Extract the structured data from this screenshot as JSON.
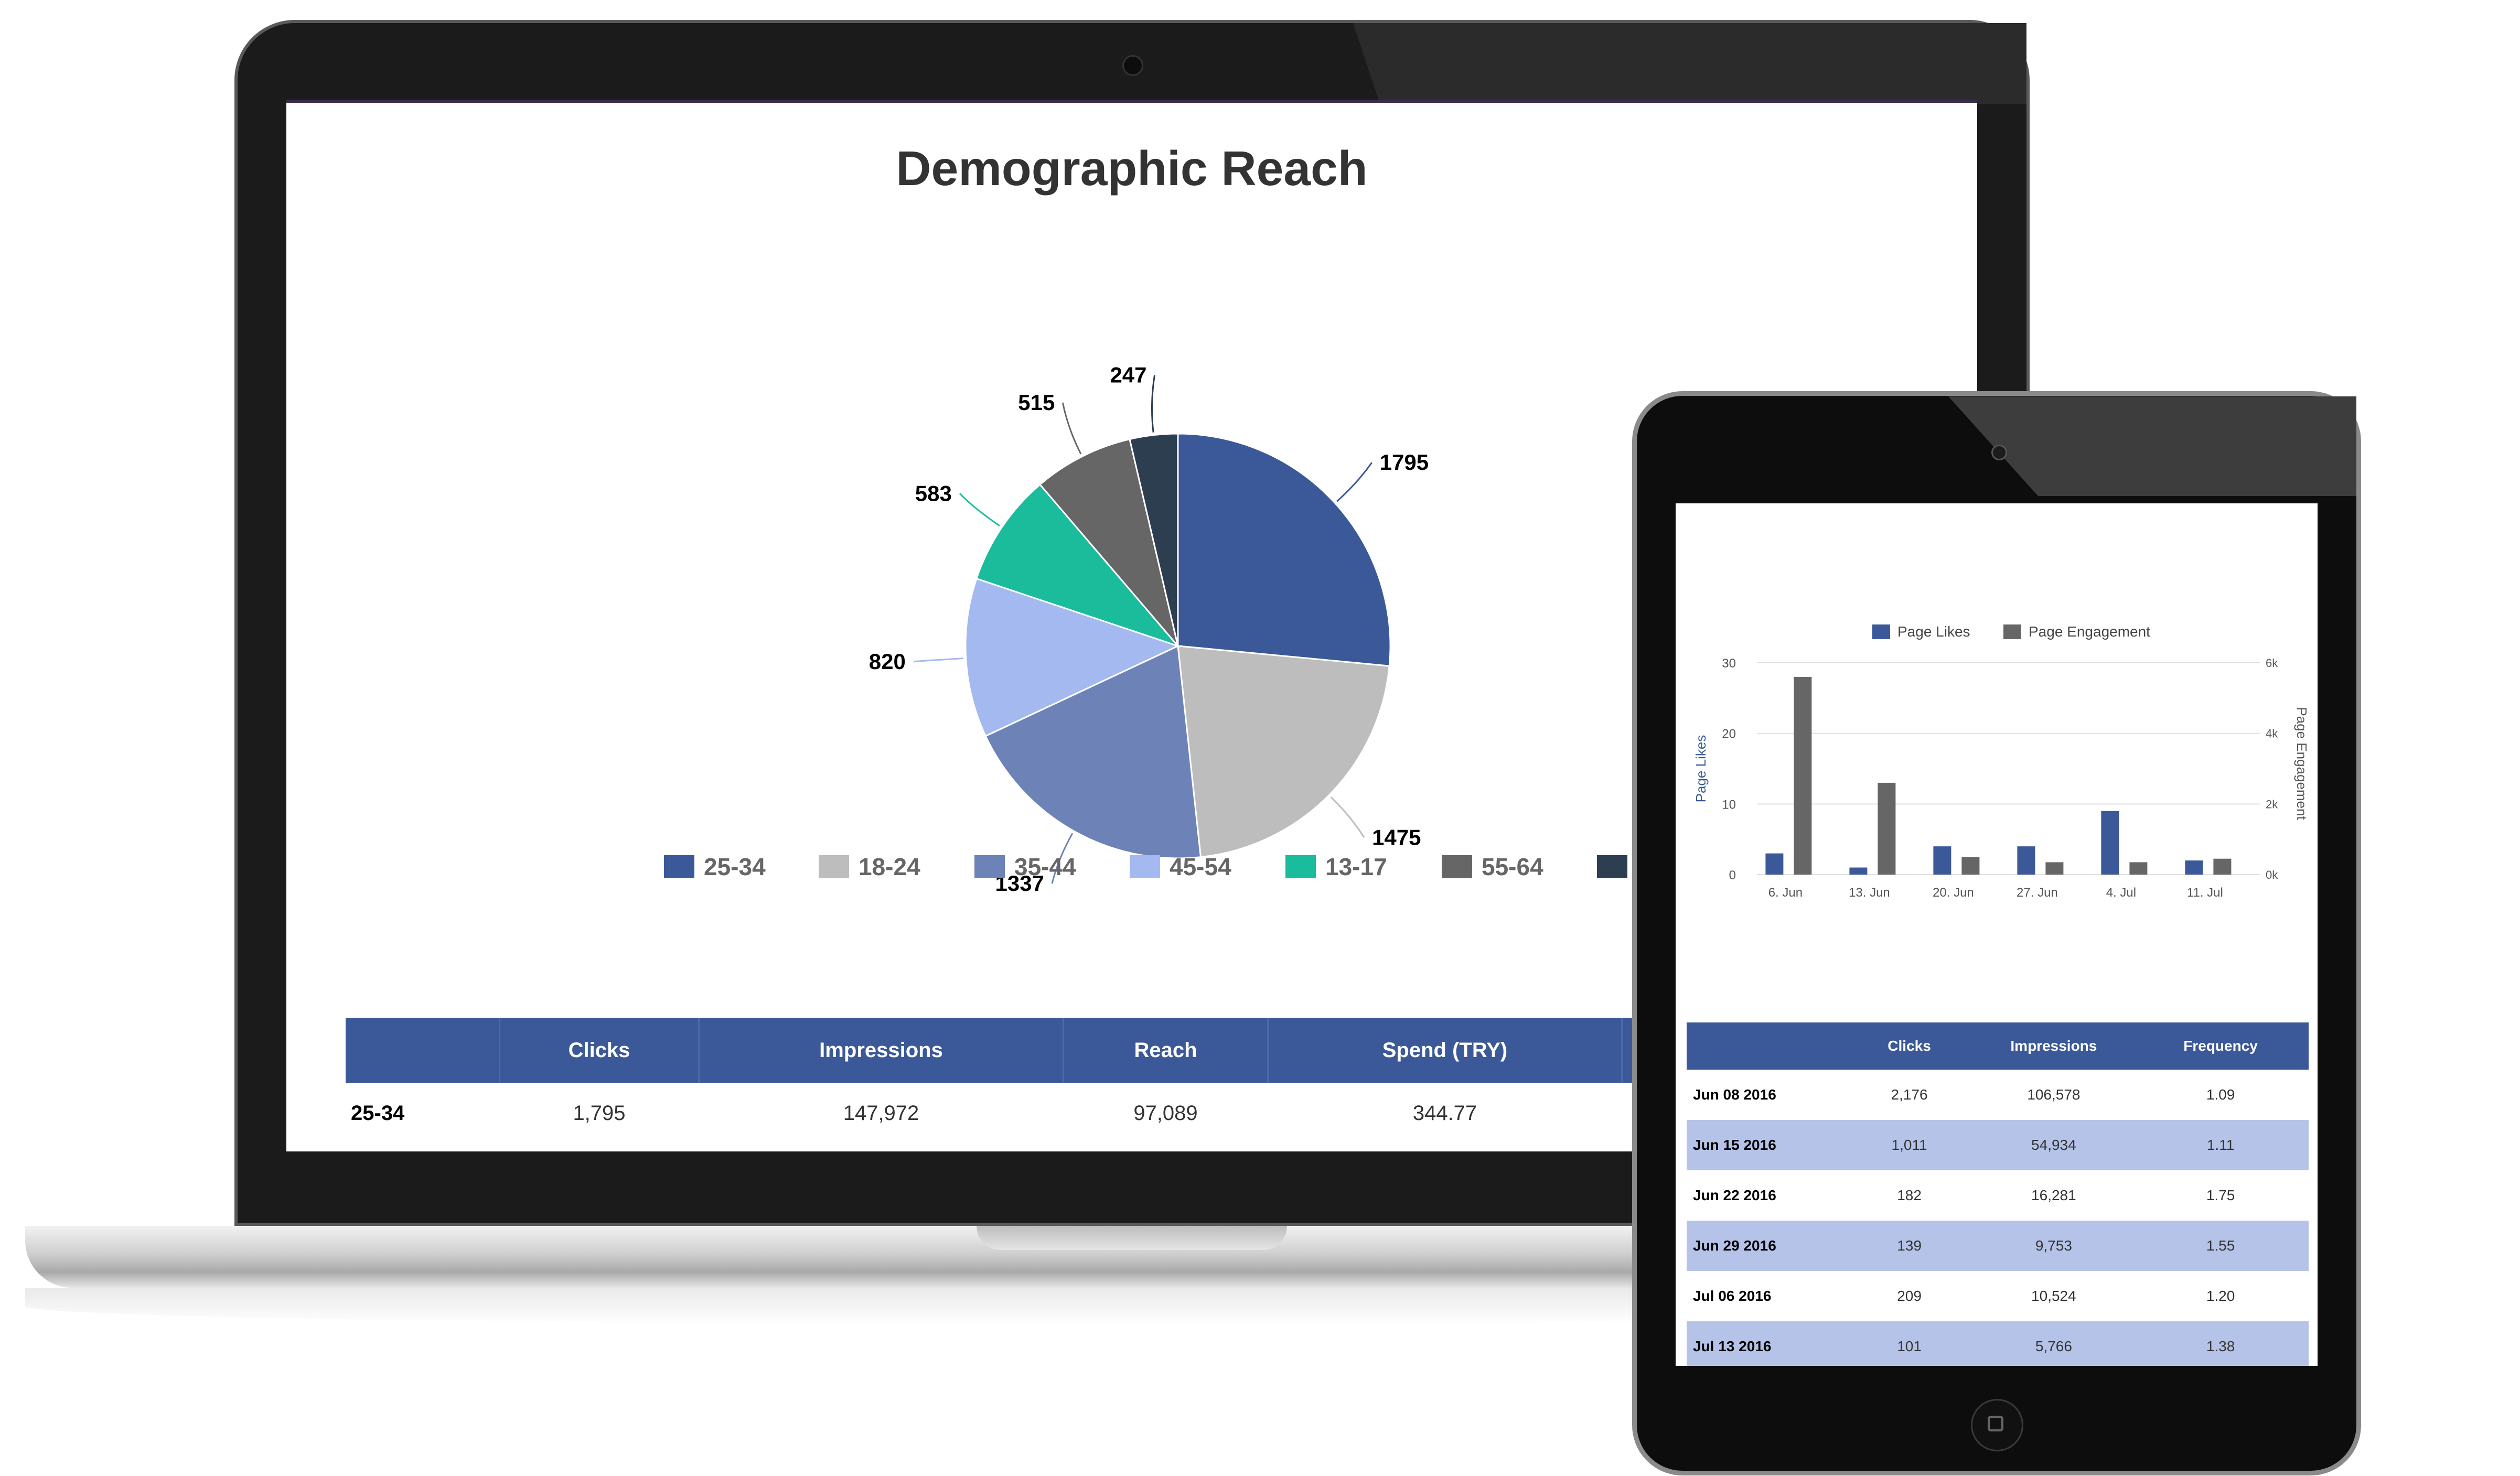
{
  "colors": {
    "brand": "#3b5998",
    "row_alt": "#b5c3e8"
  },
  "laptop": {
    "title": "Demographic Reach",
    "table": {
      "headers": [
        "",
        "Clicks",
        "Impressions",
        "Reach",
        "Spend (TRY)"
      ],
      "rows": [
        [
          "25-34",
          "1,795",
          "147,972",
          "97,089",
          "344.77"
        ]
      ]
    }
  },
  "tablet": {
    "table": {
      "headers": [
        "",
        "Clicks",
        "Impressions",
        "Frequency"
      ],
      "rows": [
        [
          "Jun 08 2016",
          "2,176",
          "106,578",
          "1.09"
        ],
        [
          "Jun 15 2016",
          "1,011",
          "54,934",
          "1.11"
        ],
        [
          "Jun 22 2016",
          "182",
          "16,281",
          "1.75"
        ],
        [
          "Jun 29 2016",
          "139",
          "9,753",
          "1.55"
        ],
        [
          "Jul 06 2016",
          "209",
          "10,524",
          "1.20"
        ],
        [
          "Jul 13 2016",
          "101",
          "5,766",
          "1.38"
        ]
      ]
    }
  },
  "chart_data": [
    {
      "type": "pie",
      "title": "Demographic Reach",
      "labels": [
        "25-34",
        "18-24",
        "35-44",
        "45-54",
        "13-17",
        "55-64",
        ""
      ],
      "values": [
        1795,
        1475,
        1337,
        820,
        583,
        515,
        247
      ],
      "colors": [
        "#3b5998",
        "#bdbdbd",
        "#6d83b8",
        "#a4b9f0",
        "#1abc9c",
        "#666666",
        "#2c3e50"
      ],
      "legend_position": "bottom"
    },
    {
      "type": "bar",
      "categories": [
        "6. Jun",
        "13. Jun",
        "20. Jun",
        "27. Jun",
        "4. Jul",
        "11. Jul"
      ],
      "series": [
        {
          "name": "Page Likes",
          "axis": "left",
          "color": "#3b5998",
          "values": [
            3,
            1,
            4,
            4,
            9,
            2
          ]
        },
        {
          "name": "Page Engagement",
          "axis": "right",
          "color": "#666666",
          "values": [
            5600,
            2600,
            500,
            350,
            350,
            450
          ]
        }
      ],
      "ylabel": "Page Likes",
      "ylabel_right": "Page Engagement",
      "ylim": [
        0,
        30
      ],
      "yticks": [
        "0",
        "10",
        "20",
        "30"
      ],
      "ylim_right": [
        0,
        6000
      ],
      "yticks_right": [
        "0k",
        "2k",
        "4k",
        "6k"
      ],
      "grid": true,
      "legend_position": "top"
    }
  ]
}
